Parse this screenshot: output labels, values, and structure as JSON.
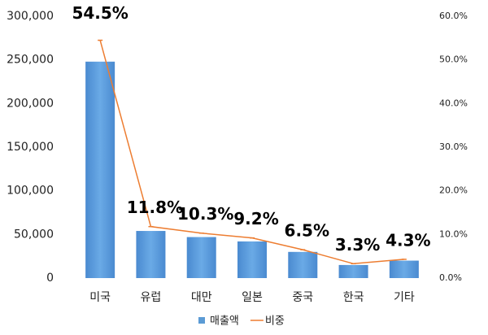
{
  "chart_data": {
    "type": "bar",
    "categories": [
      "미국",
      "유럽",
      "대만",
      "일본",
      "중국",
      "한국",
      "기타"
    ],
    "series": [
      {
        "name": "매출액",
        "type": "bar",
        "color": "#5b9bd5",
        "values": [
          248000,
          54000,
          47000,
          42000,
          30000,
          15000,
          20000
        ]
      },
      {
        "name": "비중",
        "type": "line",
        "axis": "y2",
        "color": "#ed7d31",
        "values": [
          54.5,
          11.8,
          10.3,
          9.2,
          6.5,
          3.3,
          4.3
        ],
        "value_labels": [
          "54.5%",
          "11.8%",
          "10.3%",
          "9.2%",
          "6.5%",
          "3.3%",
          "4.3%"
        ]
      }
    ],
    "ylim": [
      0,
      300000
    ],
    "yticks": [
      0,
      {
        "value": 50000,
        "label": "50,000"
      },
      {
        "value": 100000,
        "label": "100,000"
      },
      {
        "value": 150000,
        "label": "150,000"
      },
      {
        "value": 200000,
        "label": "200,000"
      },
      {
        "value": 250000,
        "label": "250,000"
      },
      {
        "value": 300000,
        "label": "300,000"
      }
    ],
    "y2lim": [
      0,
      60
    ],
    "y2ticks": [
      {
        "value": 0,
        "label": "0.0%"
      },
      {
        "value": 10,
        "label": "10.0%"
      },
      {
        "value": 20,
        "label": "20.0%"
      },
      {
        "value": 30,
        "label": "30.0%"
      },
      {
        "value": 40,
        "label": "40.0%"
      },
      {
        "value": 50,
        "label": "50.0%"
      },
      {
        "value": 60,
        "label": "60.0%"
      }
    ],
    "grid": false,
    "legend": "bottom"
  }
}
